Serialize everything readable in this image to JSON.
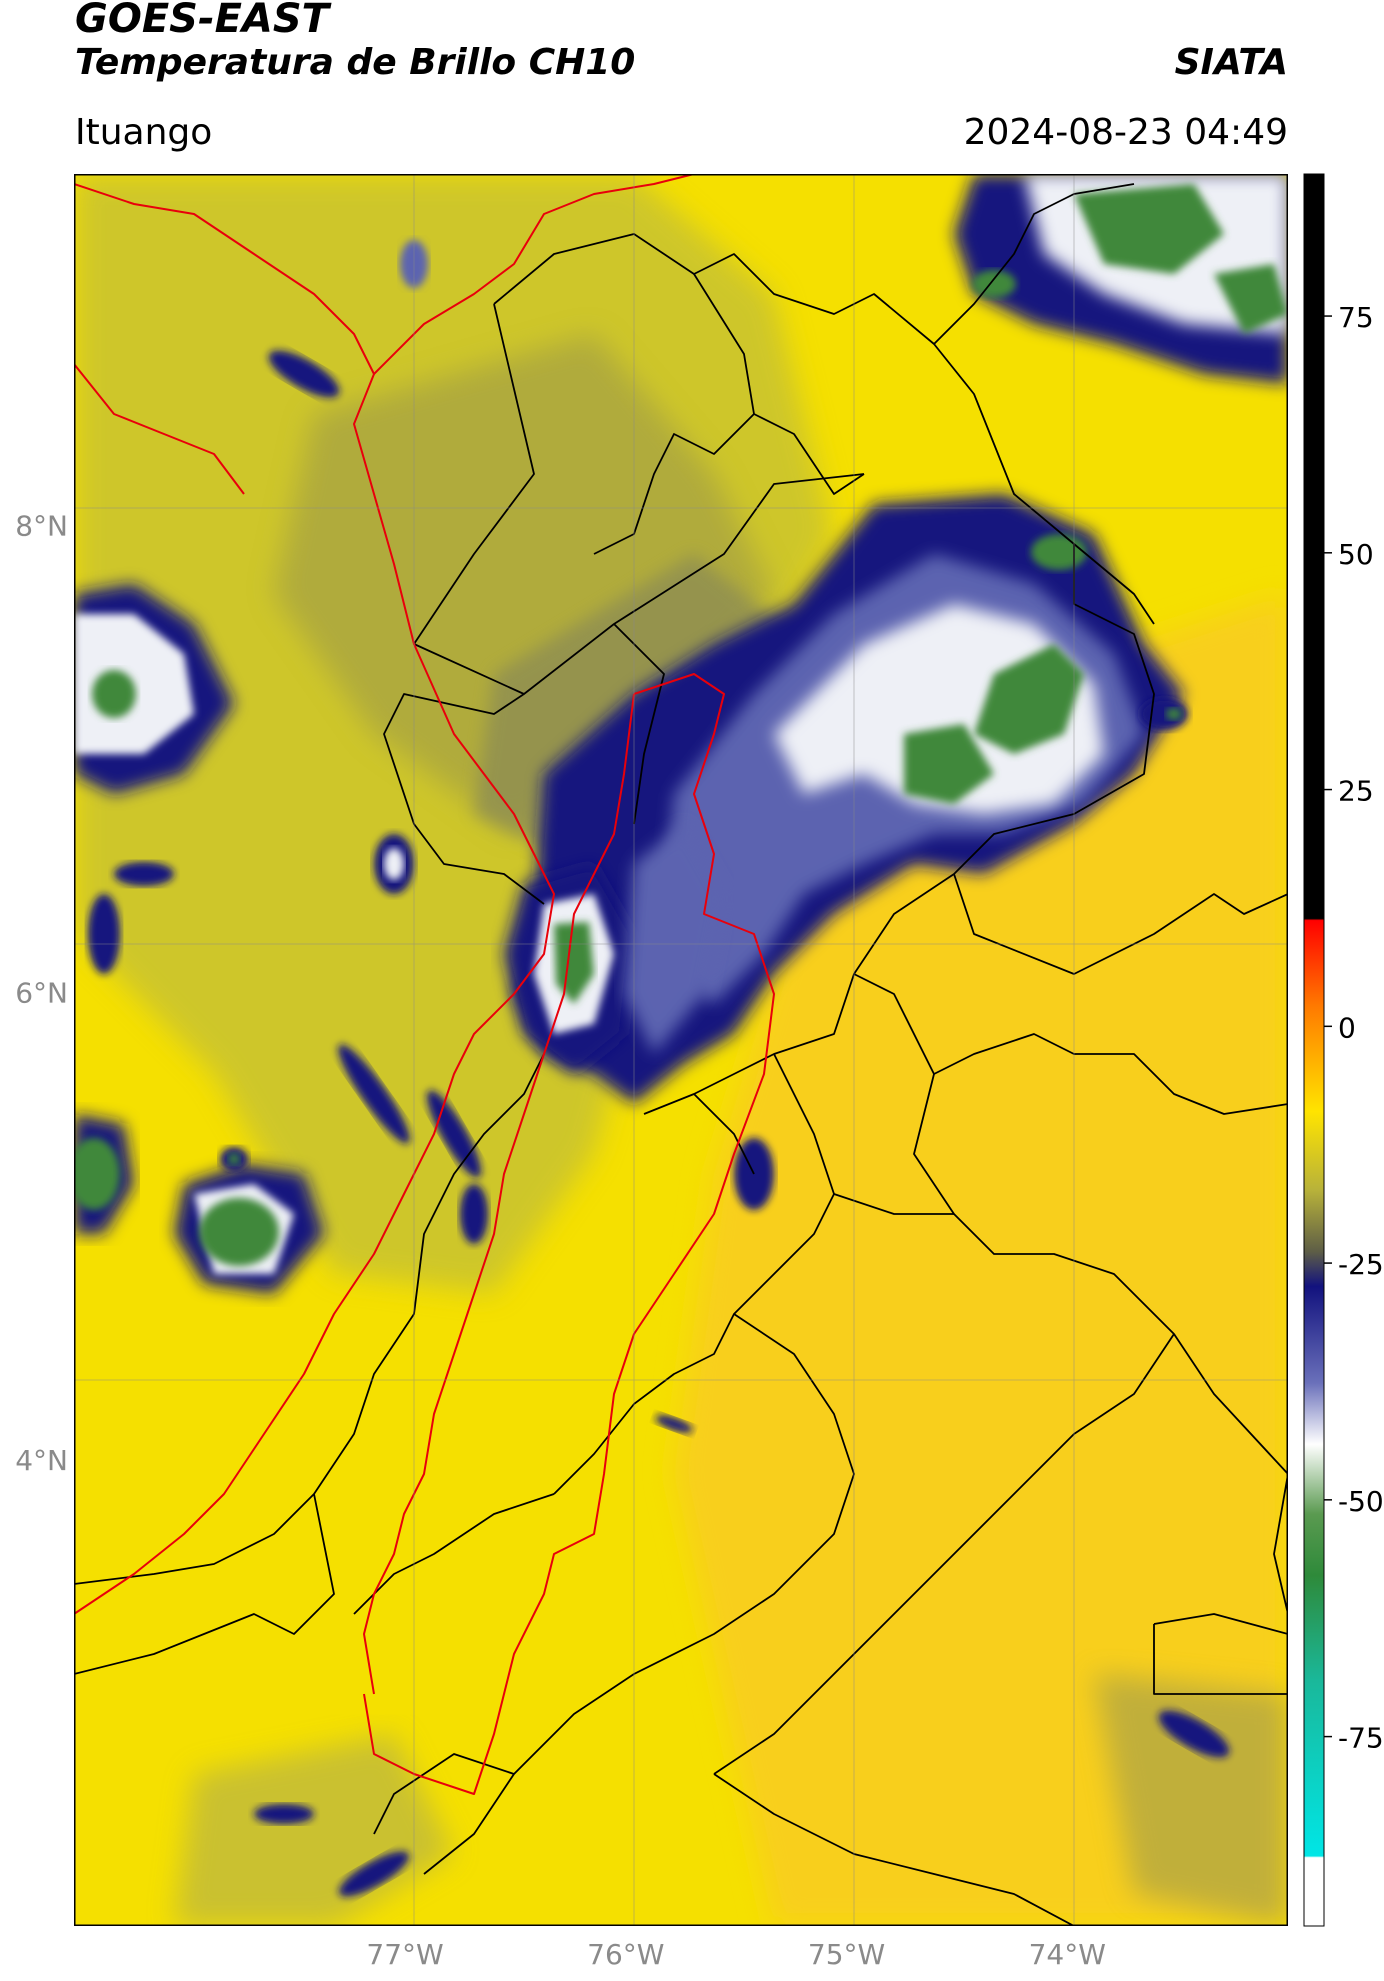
{
  "header": {
    "satellite": "GOES-EAST",
    "product": "Temperatura de Brillo CH10",
    "organization": "SIATA",
    "region": "Ituango",
    "timestamp": "2024-08-23 04:49"
  },
  "map": {
    "lat_range": [
      2.0,
      9.5
    ],
    "lon_range": [
      -78.5,
      -73.0
    ],
    "lat_ticks": [
      {
        "value": 8,
        "label": "8°N"
      },
      {
        "value": 6,
        "label": "6°N"
      },
      {
        "value": 4,
        "label": "4°N"
      }
    ],
    "lon_ticks": [
      {
        "value": -77,
        "label": "77°W"
      },
      {
        "value": -76,
        "label": "76°W"
      },
      {
        "value": -75,
        "label": "75°W"
      },
      {
        "value": -74,
        "label": "74°W"
      }
    ],
    "grid": true,
    "colors": {
      "background_warm": "#f5e000",
      "warm_orange": "#f8cf1c",
      "mid_olive": "#bdb93a",
      "cold_navy": "#12127e",
      "very_cold_white": "#f1f3f6",
      "coldest_green": "#3f883a",
      "country_border": "#e8000b",
      "dept_border": "#000000"
    }
  },
  "colorbar": {
    "range": [
      -95,
      90
    ],
    "ticks": [
      {
        "value": 75,
        "label": "75"
      },
      {
        "value": 50,
        "label": "50"
      },
      {
        "value": 25,
        "label": "25"
      },
      {
        "value": 0,
        "label": "0"
      },
      {
        "value": -25,
        "label": "-25"
      },
      {
        "value": -50,
        "label": "-50"
      },
      {
        "value": -75,
        "label": "-75"
      }
    ]
  }
}
